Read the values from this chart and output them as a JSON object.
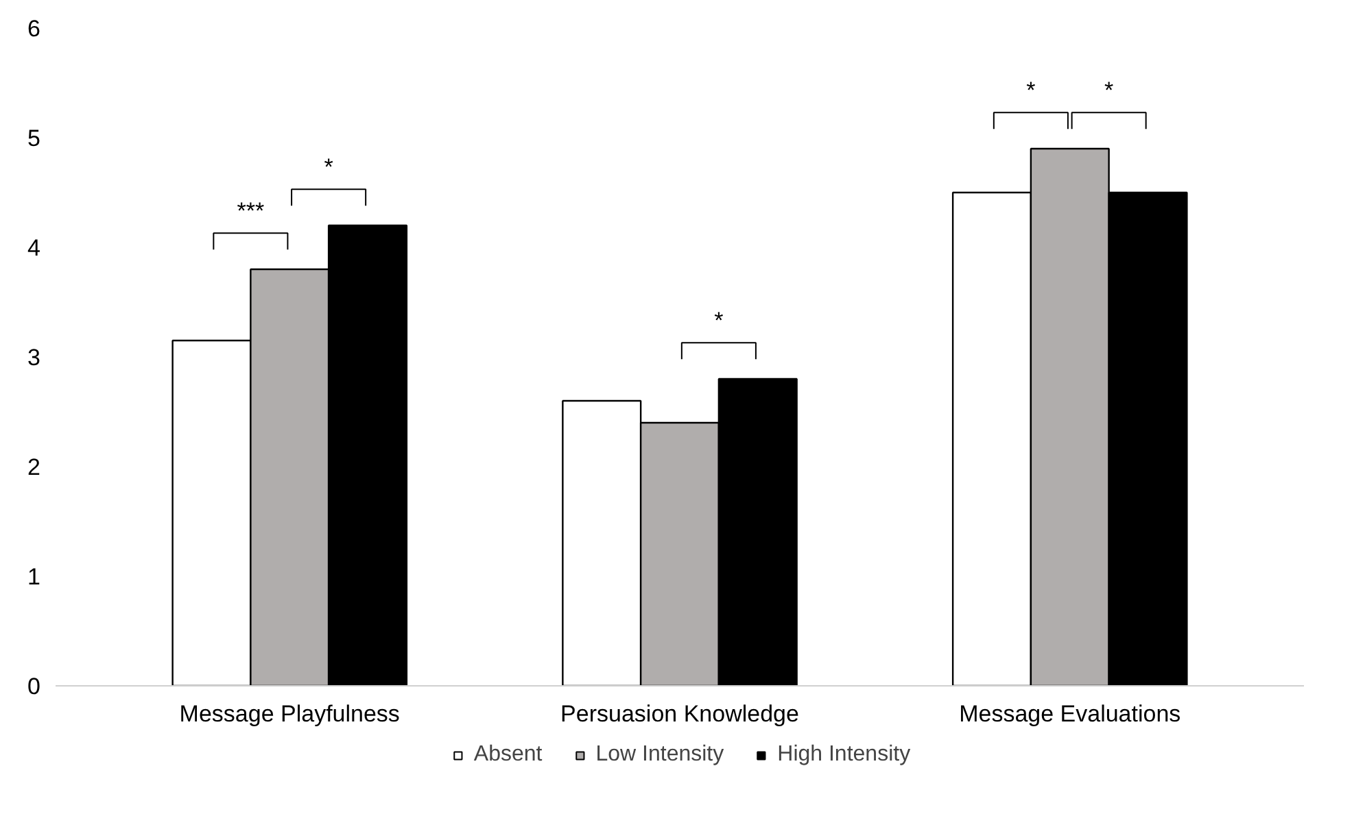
{
  "chart_data": {
    "type": "bar",
    "categories": [
      "Message Playfulness",
      "Persuasion Knowledge",
      "Message Evaluations"
    ],
    "series": [
      {
        "name": "Absent",
        "color": "#ffffff",
        "values": [
          3.15,
          2.6,
          4.5
        ]
      },
      {
        "name": "Low Intensity",
        "color": "#b0adac",
        "values": [
          3.8,
          2.4,
          4.9
        ]
      },
      {
        "name": "High Intensity",
        "color": "#000000",
        "values": [
          4.2,
          2.8,
          4.5
        ]
      }
    ],
    "ylim": [
      0,
      6
    ],
    "yticks": [
      0,
      1,
      2,
      3,
      4,
      5,
      6
    ],
    "grid": false,
    "legend": "bottom",
    "annotations": [
      "***",
      "*",
      "*",
      "*",
      "*"
    ]
  }
}
